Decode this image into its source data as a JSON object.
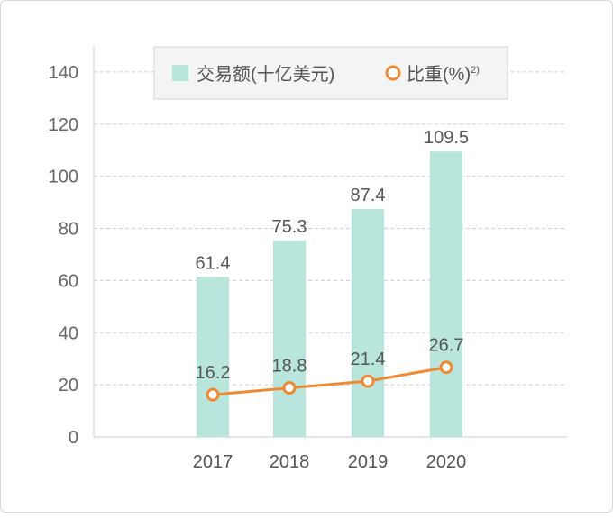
{
  "chart_data": {
    "type": "bar",
    "categories": [
      "2017",
      "2018",
      "2019",
      "2020"
    ],
    "series": [
      {
        "name": "交易额(十亿美元)",
        "type": "bar",
        "axis": "left",
        "values": [
          61.4,
          75.3,
          87.4,
          109.5
        ],
        "labels": [
          "61.4",
          "75.3",
          "87.4",
          "109.5"
        ],
        "color": "#b9e6dc"
      },
      {
        "name": "比重(%)",
        "name_superscript": "2)",
        "type": "line",
        "axis": "left",
        "values": [
          16.2,
          18.8,
          21.4,
          26.7
        ],
        "labels": [
          "16.2",
          "18.8",
          "21.4",
          "26.7"
        ],
        "color": "#f08a32"
      }
    ],
    "y_ticks": [
      "0",
      "20",
      "40",
      "60",
      "80",
      "100",
      "120",
      "140"
    ],
    "ylim": [
      0,
      150
    ],
    "grid": true,
    "legend": "top-center"
  }
}
